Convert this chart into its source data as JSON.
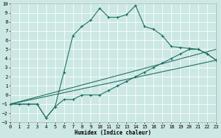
{
  "xlabel": "Humidex (Indice chaleur)",
  "bg_color": "#cce8e5",
  "grid_color": "#b0d8d4",
  "line_color": "#1a6b60",
  "xlim": [
    0,
    23
  ],
  "ylim": [
    -3,
    10
  ],
  "xticks": [
    0,
    1,
    2,
    3,
    4,
    5,
    6,
    7,
    8,
    9,
    10,
    11,
    12,
    13,
    14,
    15,
    16,
    17,
    18,
    19,
    20,
    21,
    22,
    23
  ],
  "yticks": [
    -3,
    -2,
    -1,
    0,
    1,
    2,
    3,
    4,
    5,
    6,
    7,
    8,
    9,
    10
  ],
  "curve_upper_x": [
    0,
    1,
    2,
    3,
    4,
    5,
    6,
    7,
    8,
    9,
    10,
    11,
    12,
    13,
    14,
    15,
    16,
    17,
    18,
    19,
    20,
    21,
    22,
    23
  ],
  "curve_upper_y": [
    -1.0,
    -1.0,
    -1.0,
    -1.0,
    -2.5,
    -1.3,
    2.5,
    6.5,
    7.5,
    8.2,
    9.5,
    8.5,
    8.5,
    8.8,
    9.8,
    7.5,
    7.2,
    6.5,
    5.3,
    5.2,
    5.1,
    5.0,
    4.5,
    3.8
  ],
  "curve_lower_x": [
    0,
    2,
    3,
    4,
    5,
    6,
    7,
    8,
    9,
    10,
    11,
    12,
    13,
    14,
    15,
    16,
    17,
    18,
    19,
    20,
    21,
    22,
    23
  ],
  "curve_lower_y": [
    -1.0,
    -1.0,
    -1.0,
    -2.5,
    -1.3,
    -0.5,
    -0.5,
    0.0,
    0.0,
    0.0,
    0.5,
    1.0,
    1.5,
    2.0,
    2.5,
    3.0,
    3.5,
    4.0,
    4.5,
    5.0,
    5.0,
    4.5,
    3.8
  ],
  "line1_x": [
    0,
    23
  ],
  "line1_y": [
    -1.0,
    3.8
  ],
  "line2_x": [
    0,
    23
  ],
  "line2_y": [
    -1.0,
    5.0
  ]
}
